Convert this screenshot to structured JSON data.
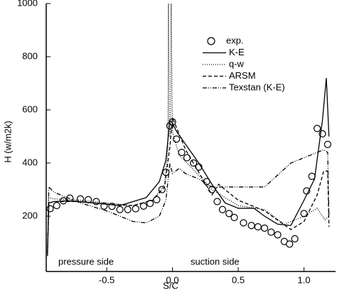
{
  "chart_data": {
    "type": "line",
    "xlabel": "S/C",
    "ylabel": "H (w/m2k)",
    "xlim": [
      -0.96,
      1.24
    ],
    "ylim": [
      0,
      1000
    ],
    "xticks": [
      -0.5,
      {
        "value": 0,
        "label": "0.0"
      },
      0.5,
      {
        "value": 1,
        "label": "1.0"
      }
    ],
    "yticks": [
      200,
      400,
      600,
      800,
      1000
    ],
    "annotations": [
      "pressure side",
      "suction side"
    ],
    "series": [
      {
        "name": "exp.",
        "color": "#000",
        "marker": "circle",
        "x": [
          -0.93,
          -0.88,
          -0.83,
          -0.78,
          -0.7,
          -0.64,
          -0.58,
          -0.52,
          -0.46,
          -0.4,
          -0.34,
          -0.28,
          -0.22,
          -0.17,
          -0.12,
          -0.08,
          -0.05,
          -0.02,
          0.0,
          0.03,
          0.07,
          0.11,
          0.16,
          0.2,
          0.26,
          0.3,
          0.34,
          0.38,
          0.43,
          0.47,
          0.54,
          0.6,
          0.65,
          0.7,
          0.75,
          0.8,
          0.85,
          0.89,
          0.93,
          1.0,
          1.02,
          1.06,
          1.1,
          1.14,
          1.18
        ],
        "values": [
          228,
          240,
          258,
          268,
          265,
          262,
          255,
          238,
          237,
          225,
          225,
          228,
          238,
          248,
          262,
          300,
          365,
          540,
          555,
          490,
          440,
          420,
          400,
          385,
          330,
          300,
          255,
          225,
          210,
          195,
          175,
          165,
          160,
          155,
          140,
          130,
          105,
          95,
          115,
          210,
          295,
          350,
          530,
          510,
          470
        ]
      },
      {
        "name": "K-E",
        "color": "#000",
        "dash": "none",
        "x": [
          -0.95,
          -0.94,
          -0.9,
          -0.8,
          -0.6,
          -0.4,
          -0.2,
          -0.1,
          -0.05,
          -0.02,
          0,
          0.03,
          0.1,
          0.2,
          0.3,
          0.4,
          0.5,
          0.62,
          0.7,
          0.8,
          0.9,
          1.0,
          1.08,
          1.14,
          1.17,
          1.19
        ],
        "values": [
          60,
          250,
          255,
          258,
          250,
          240,
          270,
          330,
          410,
          560,
          550,
          520,
          470,
          400,
          320,
          250,
          230,
          230,
          200,
          170,
          165,
          260,
          340,
          560,
          720,
          500
        ]
      },
      {
        "name": "q-w",
        "color": "#000",
        "dash": "1,2",
        "x": [
          -0.95,
          -0.94,
          -0.9,
          -0.7,
          -0.5,
          -0.3,
          -0.15,
          -0.06,
          -0.035,
          -0.03,
          -0.025,
          -0.015,
          -0.01,
          0.0,
          0.05,
          0.15,
          0.3,
          0.5,
          0.7,
          0.85,
          1.0,
          1.1,
          1.16,
          1.19
        ],
        "values": [
          60,
          270,
          265,
          260,
          250,
          240,
          260,
          320,
          450,
          1000,
          500,
          500,
          1000,
          520,
          430,
          380,
          300,
          240,
          225,
          170,
          200,
          230,
          185,
          200
        ]
      },
      {
        "name": "ARSM",
        "color": "#000",
        "dash": "5,3",
        "x": [
          -0.95,
          -0.94,
          -0.9,
          -0.7,
          -0.5,
          -0.3,
          -0.15,
          -0.06,
          -0.02,
          0,
          0.1,
          0.3,
          0.35,
          0.5,
          0.7,
          0.9,
          1.0,
          1.1,
          1.15,
          1.18,
          1.19
        ],
        "values": [
          60,
          250,
          255,
          255,
          245,
          240,
          260,
          310,
          460,
          570,
          450,
          280,
          320,
          260,
          220,
          150,
          180,
          280,
          370,
          370,
          160
        ]
      },
      {
        "name": "Texstan (K-E)",
        "color": "#000",
        "dash": "6,2,1,2,1,2",
        "x": [
          -0.95,
          -0.94,
          -0.9,
          -0.7,
          -0.5,
          -0.3,
          -0.2,
          -0.1,
          -0.05,
          -0.02,
          0,
          0.05,
          0.1,
          0.2,
          0.3,
          0.5,
          0.7,
          0.9,
          1.05,
          1.15,
          1.18,
          1.19
        ],
        "values": [
          50,
          310,
          290,
          250,
          220,
          180,
          175,
          200,
          260,
          400,
          360,
          380,
          360,
          340,
          310,
          310,
          310,
          400,
          430,
          450,
          440,
          200
        ]
      }
    ]
  }
}
